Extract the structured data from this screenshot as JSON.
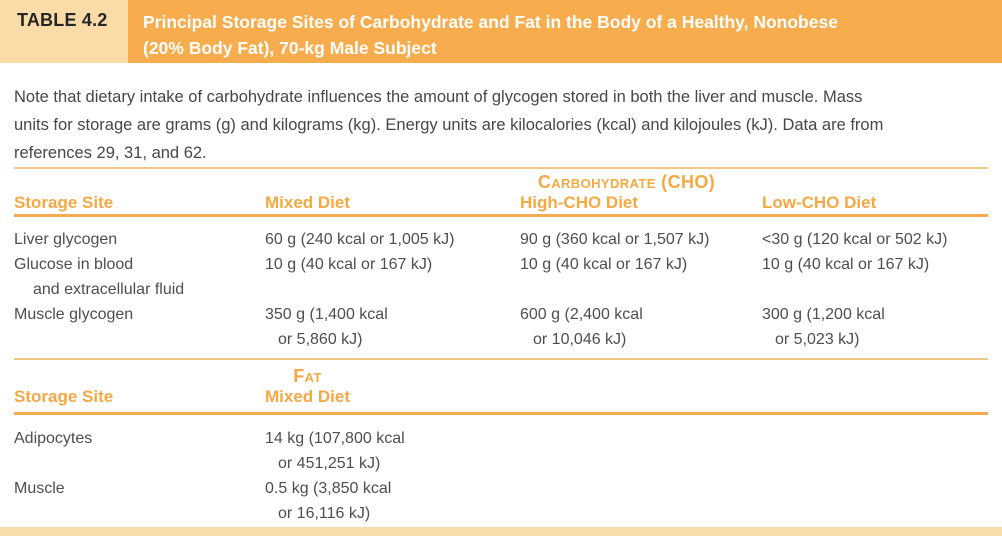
{
  "header": {
    "label": "TABLE 4.2",
    "title_lines": [
      "Principal Storage Sites of Carbohydrate and Fat in the Body of a Healthy, Nonobese",
      "(20% Body Fat), 70-kg Male Subject"
    ]
  },
  "note": {
    "lines": [
      "Note that dietary intake of carbohydrate influences the amount of glycogen stored in both the liver and muscle. Mass",
      "units for storage are grams (g) and kilograms (kg). Energy units are kilocalories (kcal) and kilojoules (kJ). Data are from",
      "references 29, 31, and 62."
    ]
  },
  "colors": {
    "banner_bg": "#f7ac4d",
    "tab_bg": "#fbdca8",
    "accent_text": "#f5a843",
    "rule_gold": "#efc78a",
    "rule_strong": "#f4ab52",
    "body_text": "#4e4e4e",
    "bottom_band": "#f8dcac"
  },
  "table_cho": {
    "group_header": "Carbohydrate (CHO)",
    "columns": [
      "Storage Site",
      "Mixed Diet",
      "High-CHO Diet",
      "Low-CHO Diet"
    ],
    "rows": [
      {
        "site": "Liver glycogen",
        "mixed": "60 g (240 kcal or 1,005 kJ)",
        "high": "90 g (360 kcal or 1,507 kJ)",
        "low": "<30 g (120 kcal or 502 kJ)"
      },
      {
        "site": "Glucose in blood",
        "site_line2": "and extracellular fluid",
        "mixed": "10 g (40 kcal or 167 kJ)",
        "high": "10 g (40 kcal or 167 kJ)",
        "low": "10 g (40 kcal or 167 kJ)"
      },
      {
        "site": "Muscle glycogen",
        "mixed": "350 g (1,400 kcal",
        "mixed_line2": "or 5,860 kJ)",
        "high": "600 g (2,400 kcal",
        "high_line2": "or 10,046 kJ)",
        "low": "300 g (1,200 kcal",
        "low_line2": "or 5,023 kJ)"
      }
    ]
  },
  "table_fat": {
    "group_header": "Fat",
    "columns": [
      "Storage Site",
      "Mixed Diet"
    ],
    "rows": [
      {
        "site": "Adipocytes",
        "mixed": "14 kg (107,800 kcal",
        "mixed_line2": "or 451,251 kJ)"
      },
      {
        "site": "Muscle",
        "mixed": "0.5 kg (3,850 kcal",
        "mixed_line2": "or 16,116 kJ)"
      }
    ]
  }
}
